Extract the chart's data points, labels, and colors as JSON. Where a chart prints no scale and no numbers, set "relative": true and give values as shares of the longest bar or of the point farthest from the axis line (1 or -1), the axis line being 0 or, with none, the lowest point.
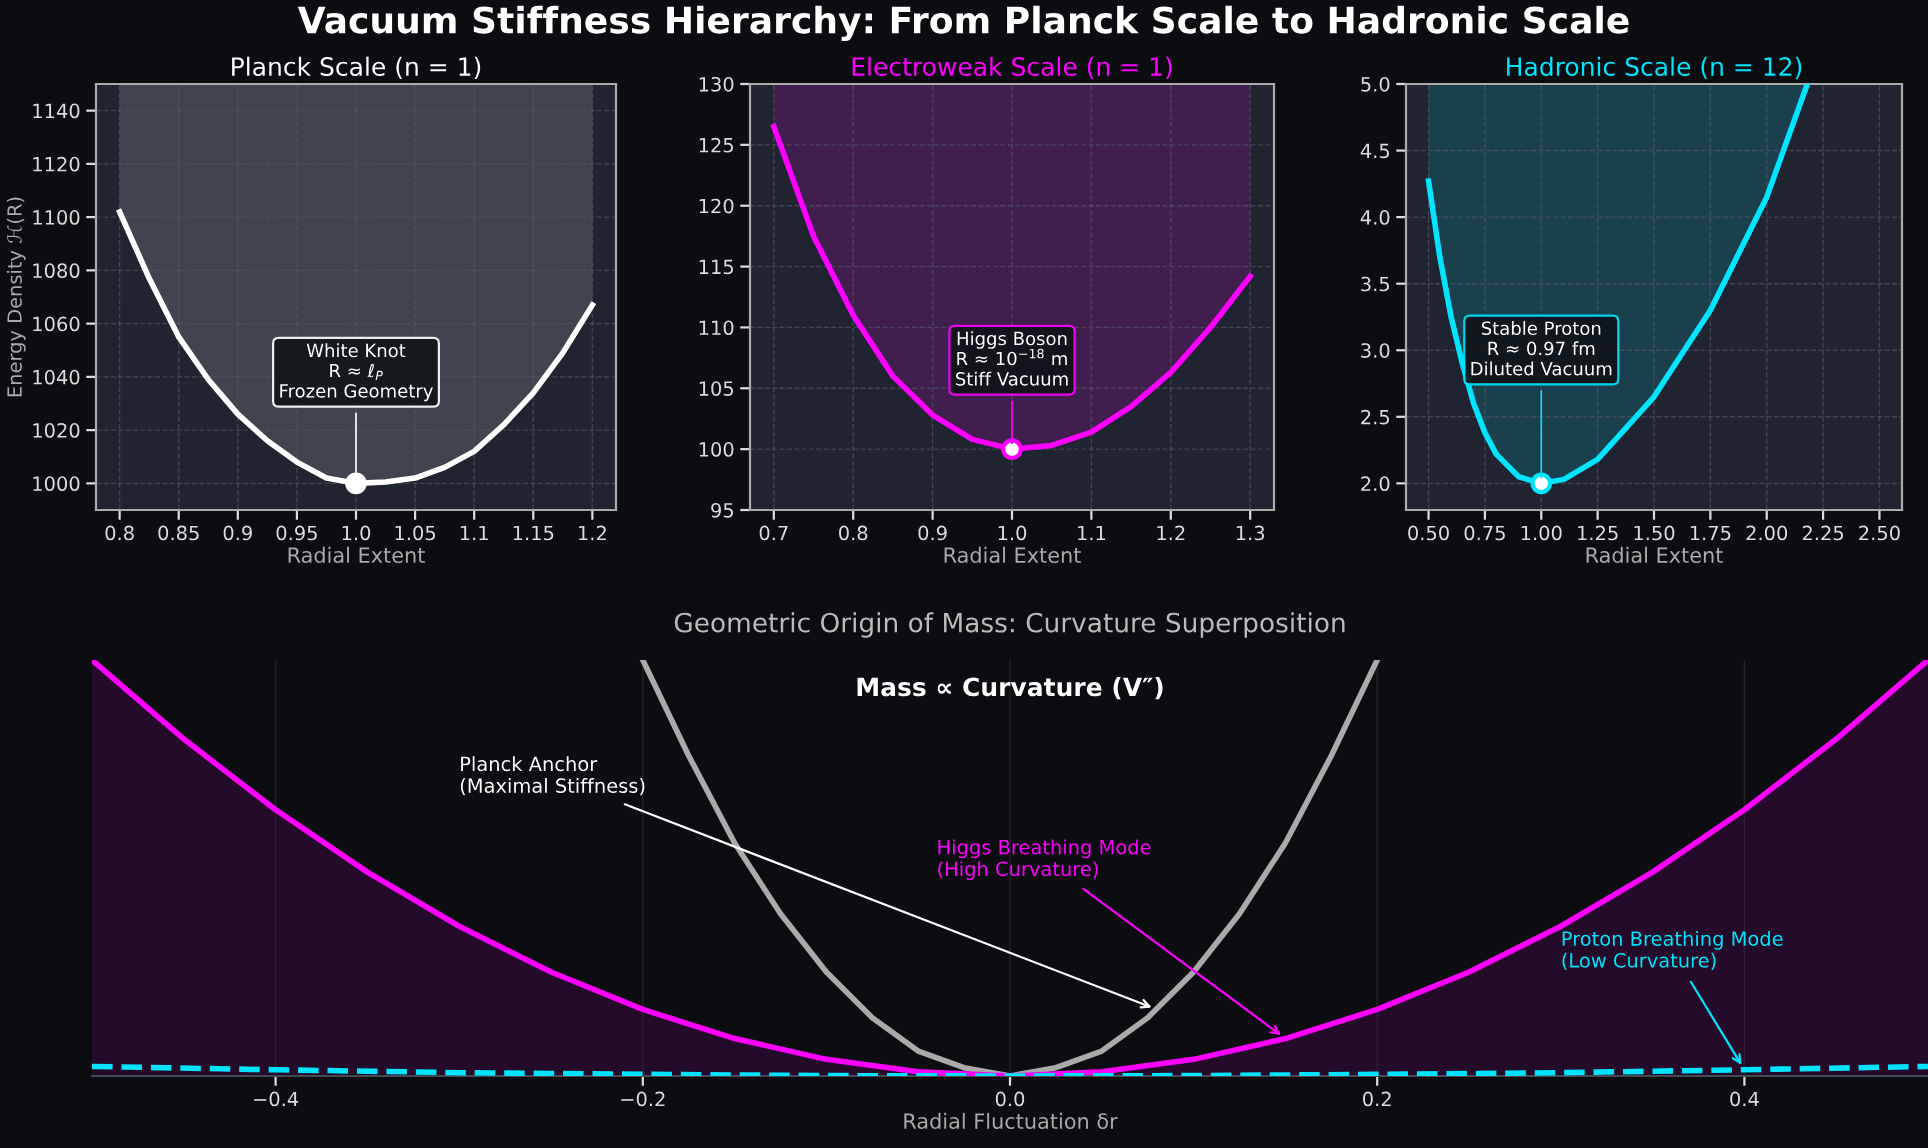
{
  "chart_data": [
    {
      "type": "line",
      "title": "Planck Scale (n = 1)",
      "xlabel": "Radial Extent",
      "ylabel": "Energy Density ℋ(R)",
      "xlim": [
        0.78,
        1.22
      ],
      "ylim": [
        990,
        1150
      ],
      "xticks": [
        0.8,
        0.85,
        0.9,
        0.95,
        {
          "value": 1.0,
          "label": "1.0"
        },
        1.05,
        1.1,
        1.15,
        1.2
      ],
      "yticks": [
        1000,
        1020,
        1040,
        1060,
        1080,
        1100,
        1120,
        1140
      ],
      "grid": true,
      "annotations": [
        "Vacuum Stiffness Hierarchy: From Planck Scale to Hadronic Scale",
        {
          "text": "White Knot\nR ≈ ℓ$_{P}$\nFrozen Geometry",
          "x": 1.0,
          "y": 1000
        }
      ],
      "series": [
        {
          "type": "line",
          "color": "#ffffff",
          "x": [
            0.8,
            0.825,
            0.85,
            0.875,
            0.9,
            0.925,
            0.95,
            0.975,
            1.0,
            1.025,
            1.05,
            1.075,
            1.1,
            1.125,
            1.15,
            1.175,
            1.2
          ],
          "values": [
            1102,
            1077,
            1055,
            1039,
            1026,
            1016,
            1008,
            1002,
            1000,
            1000.5,
            1002,
            1006,
            1012,
            1022,
            1034,
            1049,
            1067
          ],
          "lower": [
            1102,
            1077,
            1055,
            1039,
            1026,
            1016,
            1008,
            1002,
            1000,
            1000.5,
            1002,
            1006,
            1012,
            1022,
            1034,
            1049,
            1067
          ],
          "upper": [
            1150,
            1150,
            1150,
            1150,
            1150,
            1150,
            1150,
            1150,
            1150,
            1150,
            1150,
            1150,
            1150,
            1150,
            1150,
            1150,
            1150
          ]
        },
        {
          "type": "scatter",
          "color": "#ffffff",
          "marker": "circle",
          "x": [
            1.0
          ],
          "values": [
            1000
          ]
        }
      ]
    },
    {
      "type": "line",
      "title": "Electroweak Scale (n = 1)",
      "xlabel": "Radial Extent",
      "xlim": [
        0.67,
        1.33
      ],
      "ylim": [
        95,
        130
      ],
      "xticks": [
        0.7,
        0.8,
        0.9,
        {
          "value": 1.0,
          "label": "1.0"
        },
        1.1,
        1.2,
        1.3
      ],
      "yticks": [
        95,
        100,
        105,
        110,
        115,
        120,
        125,
        130
      ],
      "grid": true,
      "annotations": [
        {
          "text": "Higgs Boson\nR ≈ 10$^{−18}$ m\nStiff Vacuum",
          "x": 1.0,
          "y": 100
        }
      ],
      "series": [
        {
          "type": "line",
          "color": "#ff00ff",
          "x": [
            0.7,
            0.75,
            0.8,
            0.85,
            0.9,
            0.95,
            1.0,
            1.05,
            1.1,
            1.15,
            1.2,
            1.25,
            1.3
          ],
          "values": [
            126.5,
            117.5,
            111,
            106,
            102.8,
            100.8,
            100,
            100.3,
            101.4,
            103.5,
            106.3,
            110,
            114.2
          ],
          "lower": [
            126.5,
            117.5,
            111,
            106,
            102.8,
            100.8,
            100,
            100.3,
            101.4,
            103.5,
            106.3,
            110,
            114.2
          ],
          "upper": [
            130,
            130,
            130,
            130,
            130,
            130,
            130,
            130,
            130,
            130,
            130,
            130,
            130
          ]
        },
        {
          "type": "scatter",
          "color": "#ff00ff",
          "marker": "circle",
          "x": [
            1.0
          ],
          "values": [
            100
          ]
        }
      ]
    },
    {
      "type": "line",
      "title": "Hadronic Scale (n = 12)",
      "xlabel": "Radial Extent",
      "xlim": [
        0.4,
        2.6
      ],
      "ylim": [
        1.8,
        5.0
      ],
      "xticks": [
        {
          "value": 0.5,
          "label": "0.50"
        },
        0.75,
        {
          "value": 1.0,
          "label": "1.00"
        },
        1.25,
        {
          "value": 1.5,
          "label": "1.50"
        },
        1.75,
        {
          "value": 2.0,
          "label": "2.00"
        },
        2.25,
        {
          "value": 2.5,
          "label": "2.50"
        }
      ],
      "yticks": [
        {
          "value": 2.0,
          "label": "2.0"
        },
        2.5,
        {
          "value": 3.0,
          "label": "3.0"
        },
        3.5,
        {
          "value": 4.0,
          "label": "4.0"
        },
        4.5,
        {
          "value": 5.0,
          "label": "5.0"
        }
      ],
      "grid": true,
      "annotations": [
        {
          "text": "Stable Proton\nR ≈ 0.97 fm\nDiluted Vacuum",
          "x": 1.0,
          "y": 2.0
        }
      ],
      "series": [
        {
          "type": "line",
          "color": "#00e5ff",
          "x": [
            0.5,
            0.55,
            0.6,
            0.65,
            0.7,
            0.75,
            0.8,
            0.9,
            1.0,
            1.1,
            1.25,
            1.5,
            1.75,
            2.0,
            2.18
          ],
          "values": [
            4.27,
            3.7,
            3.25,
            2.9,
            2.6,
            2.38,
            2.22,
            2.05,
            2.0,
            2.03,
            2.18,
            2.65,
            3.3,
            4.15,
            5.0
          ],
          "lower": [
            4.27,
            3.7,
            3.25,
            2.9,
            2.6,
            2.38,
            2.22,
            2.05,
            2.0,
            2.03,
            2.18,
            2.65,
            3.3,
            4.15,
            5.0
          ],
          "upper": [
            5.0,
            5.0,
            5.0,
            5.0,
            5.0,
            5.0,
            5.0,
            5.0,
            5.0,
            5.0,
            5.0,
            5.0,
            5.0,
            5.0,
            5.0
          ]
        },
        {
          "type": "scatter",
          "color": "#00e5ff",
          "marker": "circle",
          "x": [
            1.0
          ],
          "values": [
            2.0
          ]
        }
      ]
    },
    {
      "type": "line",
      "relative": true,
      "title": "Geometric Origin of Mass: Curvature Superposition",
      "xlabel": "Radial Fluctuation δr",
      "xlim": [
        -0.5,
        0.5
      ],
      "xticks": [
        {
          "value": -0.4,
          "label": "−0.4"
        },
        {
          "value": -0.2,
          "label": "−0.2"
        },
        {
          "value": 0.0,
          "label": "0.0"
        },
        0.2,
        0.4
      ],
      "grid": "x",
      "annotations": [
        "Mass ∝ Curvature (V″)",
        {
          "text": "Planck Anchor\n(Maximal Stiffness)",
          "x": 0.08,
          "y": 0.16
        },
        {
          "text": "Higgs Breathing Mode\n(High Curvature)",
          "x": 0.15,
          "y": 0.09
        },
        {
          "text": "Proton Breathing Mode\n(Low Curvature)",
          "x": 0.4,
          "y": 0.015
        }
      ],
      "series": [
        {
          "type": "line",
          "color": "#aaaaaa",
          "x": [
            -0.2,
            -0.175,
            -0.15,
            -0.125,
            -0.1,
            -0.075,
            -0.05,
            -0.025,
            0.0,
            0.025,
            0.05,
            0.075,
            0.1,
            0.125,
            0.15,
            0.175,
            0.2
          ],
          "values": [
            1,
            0.77,
            0.56,
            0.39,
            0.25,
            0.14,
            0.06,
            0.02,
            0,
            0.02,
            0.06,
            0.14,
            0.25,
            0.39,
            0.56,
            0.77,
            1
          ]
        },
        {
          "type": "area",
          "color": "#ff00ff",
          "x": [
            -0.5,
            -0.45,
            -0.4,
            -0.35,
            -0.3,
            -0.25,
            -0.2,
            -0.15,
            -0.1,
            -0.05,
            0.0,
            0.05,
            0.1,
            0.15,
            0.2,
            0.25,
            0.3,
            0.35,
            0.4,
            0.45,
            0.5
          ],
          "values": [
            1,
            0.81,
            0.64,
            0.49,
            0.36,
            0.25,
            0.16,
            0.09,
            0.04,
            0.01,
            0,
            0.01,
            0.04,
            0.09,
            0.16,
            0.25,
            0.36,
            0.49,
            0.64,
            0.81,
            1
          ]
        },
        {
          "type": "line",
          "color": "#00e5ff",
          "line_style": "dashed",
          "x": [
            -0.5,
            -0.4,
            -0.3,
            -0.2,
            -0.1,
            0.0,
            0.1,
            0.2,
            0.3,
            0.4,
            0.5
          ],
          "values": [
            0.023,
            0.015,
            0.008,
            0.004,
            0.001,
            0,
            0.001,
            0.004,
            0.008,
            0.015,
            0.023
          ]
        }
      ]
    }
  ]
}
